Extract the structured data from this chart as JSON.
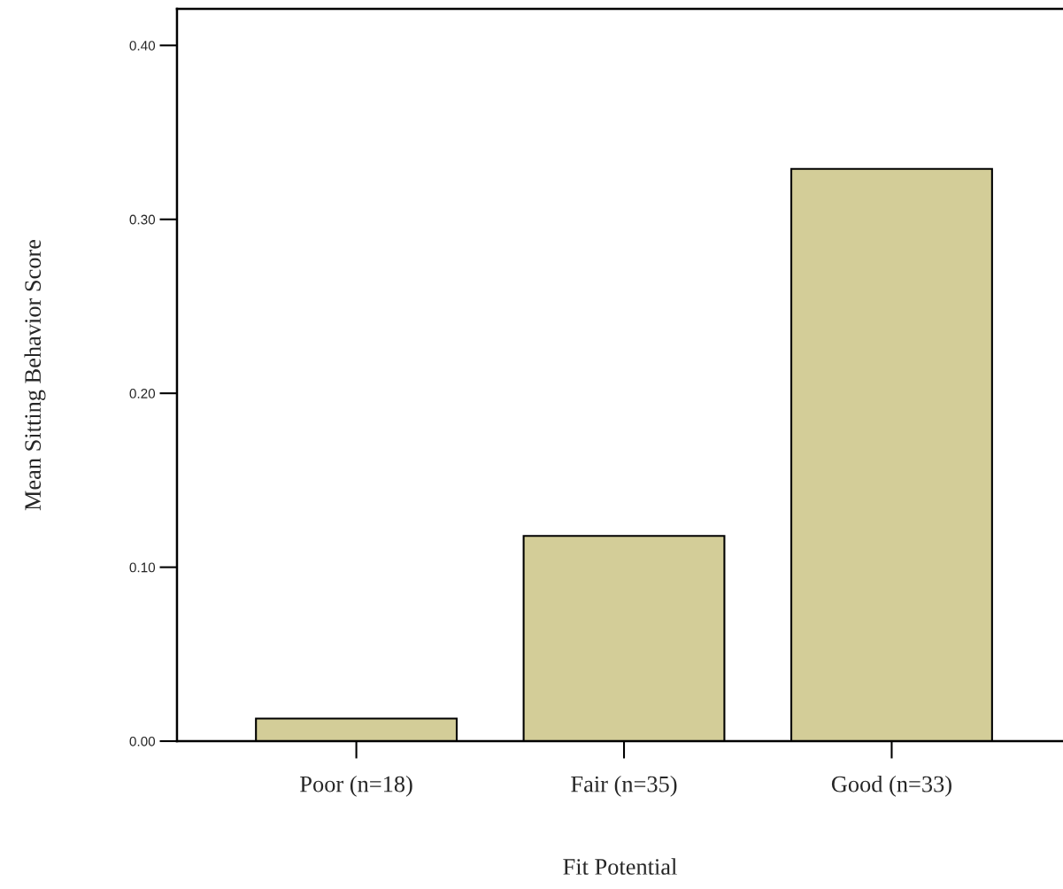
{
  "chart_data": {
    "type": "bar",
    "xlabel": "Fit Potential",
    "ylabel": "Mean Sitting Behavior Score",
    "categories": [
      "Poor (n=18)",
      "Fair (n=35)",
      "Good (n=33)"
    ],
    "values": [
      0.013,
      0.118,
      0.329
    ],
    "color": "#d3cd98",
    "ylim": [
      0,
      0.421
    ],
    "yticks": [
      {
        "value": 0,
        "label": "0.00"
      },
      {
        "value": 0.1,
        "label": "0.10"
      },
      {
        "value": 0.2,
        "label": "0.20"
      },
      {
        "value": 0.3,
        "label": "0.30"
      },
      {
        "value": 0.4,
        "label": "0.40"
      }
    ],
    "grid": false,
    "legend": false
  }
}
